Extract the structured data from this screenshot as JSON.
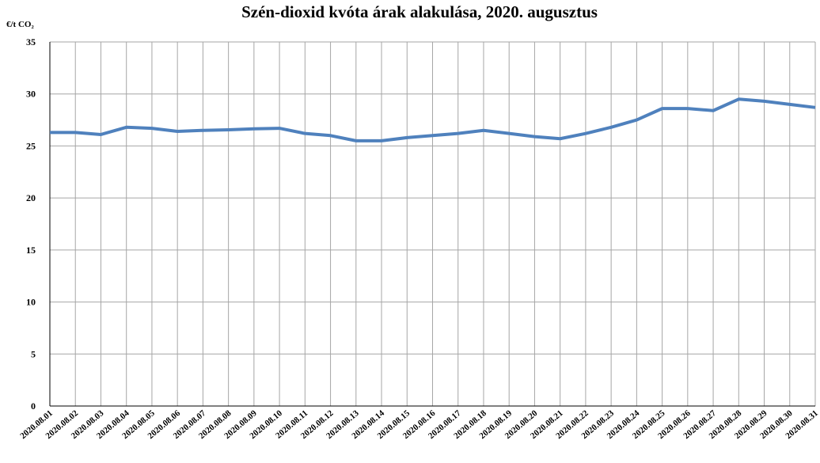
{
  "chart_data": {
    "type": "line",
    "title": "Szén-dioxid kvóta árak alakulása, 2020. augusztus",
    "y_label": "€/t CO₂",
    "categories": [
      "2020.08.01",
      "2020.08.02",
      "2020.08.03",
      "2020.08.04",
      "2020.08.05",
      "2020.08.06",
      "2020.08.07",
      "2020.08.08",
      "2020.08.09",
      "2020.08.10",
      "2020.08.11",
      "2020.08.12",
      "2020.08.13",
      "2020.08.14",
      "2020.08.15",
      "2020.08.16",
      "2020.08.17",
      "2020.08.18",
      "2020.08.19",
      "2020.08.20",
      "2020.08.21",
      "2020.08.22",
      "2020.08.23",
      "2020.08.24",
      "2020.08.25",
      "2020.08.26",
      "2020.08.27",
      "2020.08.28",
      "2020.08.29",
      "2020.08.30",
      "2020.08.31"
    ],
    "series": [
      {
        "name": null,
        "color": "#4f81bd",
        "values": [
          26.3,
          26.3,
          26.1,
          26.8,
          26.7,
          26.4,
          26.5,
          26.55,
          26.65,
          26.7,
          26.2,
          26.0,
          25.5,
          25.5,
          25.8,
          26.0,
          26.2,
          26.5,
          26.2,
          25.9,
          25.7,
          26.2,
          26.8,
          27.5,
          28.6,
          28.6,
          28.4,
          29.5,
          29.3,
          29.0,
          28.7
        ]
      }
    ],
    "ylim": [
      0,
      35
    ],
    "yticks": [
      0,
      5,
      10,
      15,
      20,
      25,
      30,
      35
    ],
    "grid": true
  }
}
